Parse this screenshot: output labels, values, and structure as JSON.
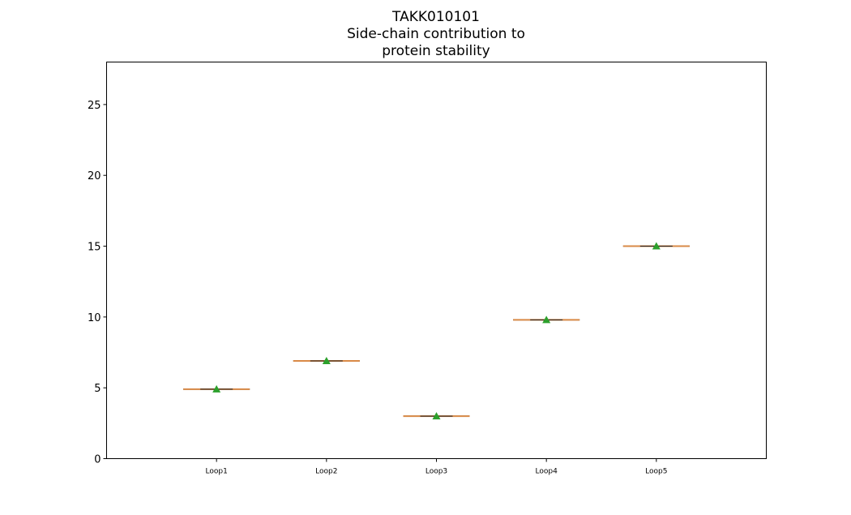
{
  "chart_data": {
    "type": "box",
    "title_lines": [
      "TAKK010101",
      "Side-chain contribution to",
      "protein stability"
    ],
    "xlabel": "",
    "ylabel": "",
    "categories": [
      "Loop1",
      "Loop2",
      "Loop3",
      "Loop4",
      "Loop5"
    ],
    "values": [
      4.9,
      6.9,
      3.0,
      9.8,
      15.0
    ],
    "ylim": [
      0,
      28
    ],
    "yticks": [
      0,
      5,
      10,
      15,
      20,
      25
    ],
    "grid": false,
    "show_means": true,
    "colors": {
      "median": "#d98a47",
      "box": "#1f1f1f",
      "mean_marker": "#2ca02c",
      "axes": "#000000"
    }
  }
}
